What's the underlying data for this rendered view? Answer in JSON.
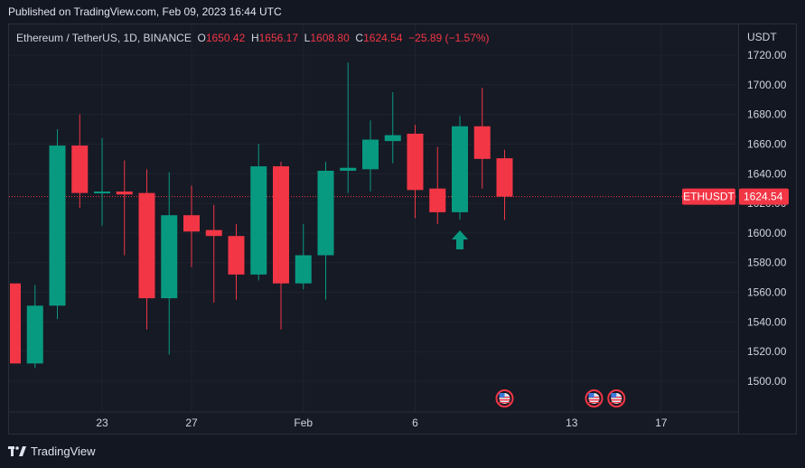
{
  "header": {
    "published": "Published on TradingView.com, Feb 09, 2023 16:44 UTC"
  },
  "legend": {
    "symbol": "Ethereum / TetherUS, 1D, BINANCE",
    "o_label": "O",
    "o": "1650.42",
    "h_label": "H",
    "h": "1656.17",
    "l_label": "L",
    "l": "1608.80",
    "c_label": "C",
    "c": "1624.54",
    "change": "−25.89 (−1.57%)"
  },
  "price_axis": {
    "currency": "USDT",
    "badge_symbol": "ETHUSDT",
    "badge_price": "1624.54"
  },
  "footer": {
    "brand": "TradingView"
  },
  "colors": {
    "up": "#089981",
    "down": "#f23645",
    "background": "#131722",
    "grid": "#1f2330",
    "text": "#d1d4dc"
  },
  "icons": [
    "up-arrow-icon",
    "us-flag-event-icon",
    "tradingview-logo-icon"
  ],
  "chart_data": {
    "type": "candlestick",
    "title": "Ethereum / TetherUS, 1D, BINANCE",
    "ylabel": "USDT",
    "ylim": [
      1488,
      1730
    ],
    "y_ticks": [
      1500,
      1520,
      1540,
      1560,
      1580,
      1600,
      1620,
      1640,
      1660,
      1680,
      1700,
      1720
    ],
    "x_tick_labels": [
      {
        "label": "23",
        "x": "2023-01-23"
      },
      {
        "label": "27",
        "x": "2023-01-27"
      },
      {
        "label": "Feb",
        "x": "2023-02-01"
      },
      {
        "label": "6",
        "x": "2023-02-06"
      },
      {
        "label": "13",
        "x": "2023-02-13"
      },
      {
        "label": "17",
        "x": "2023-02-17"
      }
    ],
    "x_range": [
      "2023-01-19",
      "2023-02-20"
    ],
    "candles": [
      {
        "date": "2023-01-19",
        "o": 1566,
        "h": 1566,
        "l": 1512,
        "c": 1512
      },
      {
        "date": "2023-01-20",
        "o": 1512,
        "h": 1565,
        "l": 1509,
        "c": 1551
      },
      {
        "date": "2023-01-21",
        "o": 1551,
        "h": 1670,
        "l": 1542,
        "c": 1659
      },
      {
        "date": "2023-01-22",
        "o": 1659,
        "h": 1680,
        "l": 1617,
        "c": 1627
      },
      {
        "date": "2023-01-23",
        "o": 1627,
        "h": 1664,
        "l": 1605,
        "c": 1628
      },
      {
        "date": "2023-01-24",
        "o": 1628,
        "h": 1649,
        "l": 1585,
        "c": 1626
      },
      {
        "date": "2023-01-25",
        "o": 1627,
        "h": 1643,
        "l": 1535,
        "c": 1556
      },
      {
        "date": "2023-01-26",
        "o": 1556,
        "h": 1641,
        "l": 1518,
        "c": 1612
      },
      {
        "date": "2023-01-27",
        "o": 1612,
        "h": 1632,
        "l": 1577,
        "c": 1601
      },
      {
        "date": "2023-01-28",
        "o": 1602,
        "h": 1619,
        "l": 1553,
        "c": 1598
      },
      {
        "date": "2023-01-29",
        "o": 1598,
        "h": 1606,
        "l": 1555,
        "c": 1572
      },
      {
        "date": "2023-01-30",
        "o": 1572,
        "h": 1660,
        "l": 1568,
        "c": 1645
      },
      {
        "date": "2023-01-31",
        "o": 1645,
        "h": 1648,
        "l": 1535,
        "c": 1566
      },
      {
        "date": "2023-02-01",
        "o": 1566,
        "h": 1606,
        "l": 1562,
        "c": 1585
      },
      {
        "date": "2023-02-02",
        "o": 1585,
        "h": 1648,
        "l": 1555,
        "c": 1642
      },
      {
        "date": "2023-02-03",
        "o": 1642,
        "h": 1715,
        "l": 1627,
        "c": 1644
      },
      {
        "date": "2023-02-04",
        "o": 1643,
        "h": 1676,
        "l": 1628,
        "c": 1663
      },
      {
        "date": "2023-02-05",
        "o": 1662,
        "h": 1695,
        "l": 1647,
        "c": 1666
      },
      {
        "date": "2023-02-06",
        "o": 1667,
        "h": 1673,
        "l": 1610,
        "c": 1629
      },
      {
        "date": "2023-02-07",
        "o": 1630,
        "h": 1658,
        "l": 1606,
        "c": 1614
      },
      {
        "date": "2023-02-08",
        "o": 1614,
        "h": 1679,
        "l": 1609,
        "c": 1672
      },
      {
        "date": "2023-02-09",
        "o": 1672,
        "h": 1698,
        "l": 1630,
        "c": 1650
      },
      {
        "date": "2023-02-10",
        "o": 1650.42,
        "h": 1656.17,
        "l": 1608.8,
        "c": 1624.54
      }
    ],
    "last_price": 1624.54,
    "markers": [
      {
        "type": "up-arrow",
        "date": "2023-02-08"
      },
      {
        "type": "us-flag-event",
        "date": "2023-02-10"
      },
      {
        "type": "us-flag-event",
        "date": "2023-02-14"
      },
      {
        "type": "us-flag-event",
        "date": "2023-02-15"
      }
    ]
  }
}
